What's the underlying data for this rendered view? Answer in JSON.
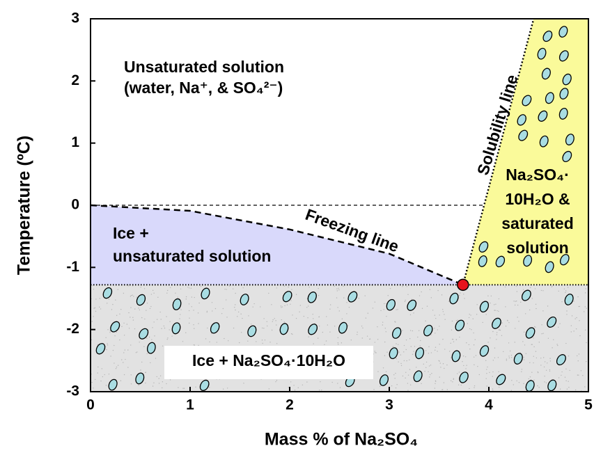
{
  "chart_data": {
    "type": "phase-diagram",
    "xlabel": "Mass % of Na₂SO₄",
    "ylabel": "Temperature  (ºC)",
    "xlim": [
      0,
      5
    ],
    "ylim": [
      -3,
      3
    ],
    "xticks": [
      0,
      1,
      2,
      3,
      4,
      5
    ],
    "yticks": [
      -3,
      -2,
      -1,
      0,
      1,
      2,
      3
    ],
    "lines": [
      {
        "name": "Freezing line",
        "dash": "dashed",
        "x": [
          0,
          1,
          2,
          3,
          3.74
        ],
        "y": [
          0,
          -0.09,
          -0.39,
          -0.78,
          -1.28
        ]
      },
      {
        "name": "Solubility line",
        "dash": "dotted",
        "x": [
          3.74,
          4.45
        ],
        "y": [
          -1.28,
          3
        ]
      }
    ],
    "point": {
      "x": 3.74,
      "y": -1.28,
      "color": "#e8141c"
    },
    "regions": [
      {
        "lines": [
          "Unsaturated solution",
          "(water, Na⁺, & SO₄²⁻)"
        ],
        "color": "#ffffff"
      },
      {
        "lines": [
          "Ice +",
          "unsaturated solution"
        ],
        "color": "#d9d9fb"
      },
      {
        "lines": [
          "Na₂SO₄·",
          "10H₂O &",
          "saturated",
          "solution"
        ],
        "color": "#fafa9a"
      },
      {
        "lines": [
          "Ice + Na₂SO₄·10H₂O"
        ],
        "color": "#e2e2e2"
      }
    ],
    "crystal_color": "#a9dde3"
  }
}
